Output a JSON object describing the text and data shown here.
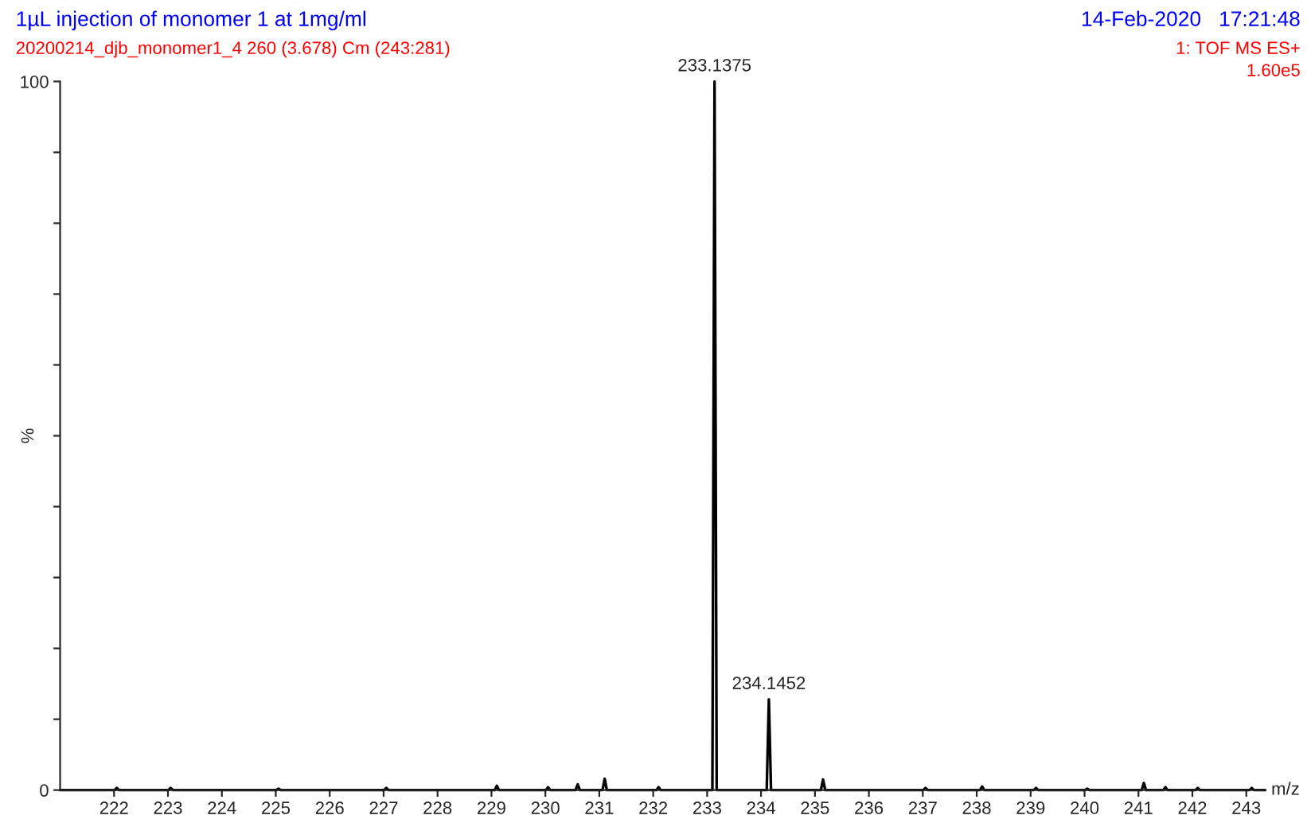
{
  "chart_data": {
    "type": "line",
    "title": "1µL injection of monomer 1 at 1mg/ml",
    "subtitle": "20200214_djb_monomer1_4 260 (3.678) Cm (243:281)",
    "xlabel": "m/z",
    "ylabel": "%",
    "annotations": [
      "14-Feb-2020   17:21:48",
      "1: TOF MS ES+",
      "1.60e5",
      {
        "text": "233.1375",
        "x": 233.1375,
        "y": 100
      },
      {
        "text": "234.1452",
        "x": 234.1452,
        "y": 12.8
      }
    ],
    "series": [
      {
        "color": "#000000",
        "x": [
          221.0,
          222.01,
          222.05,
          222.09,
          223.01,
          223.05,
          223.09,
          225.01,
          225.05,
          225.09,
          227.01,
          227.05,
          227.09,
          229.06,
          229.1,
          229.14,
          230.01,
          230.05,
          230.09,
          230.56,
          230.6,
          230.64,
          231.06,
          231.1,
          231.14,
          232.06,
          232.1,
          232.14,
          233.0975,
          233.1375,
          233.1775,
          234.1052,
          234.1452,
          234.1852,
          235.11,
          235.15,
          235.19,
          237.01,
          237.05,
          237.09,
          238.06,
          238.1,
          238.14,
          239.06,
          239.1,
          239.14,
          240.01,
          240.05,
          240.09,
          241.06,
          241.1,
          241.14,
          241.46,
          241.5,
          241.54,
          242.06,
          242.1,
          242.14,
          243.06,
          243.1,
          243.14,
          243.35
        ],
        "values": [
          0,
          0,
          0.3,
          0,
          0,
          0.3,
          0,
          0,
          0.2,
          0,
          0,
          0.3,
          0,
          0,
          0.6,
          0,
          0,
          0.4,
          0,
          0,
          0.8,
          0,
          0,
          1.6,
          0,
          0,
          0.4,
          0,
          0,
          100,
          0,
          0,
          12.8,
          0,
          0,
          1.5,
          0,
          0,
          0.3,
          0,
          0,
          0.5,
          0,
          0,
          0.3,
          0,
          0,
          0.2,
          0,
          0,
          1.0,
          0,
          0,
          0.4,
          0,
          0,
          0.3,
          0,
          0,
          0.3,
          0,
          0
        ]
      }
    ],
    "xlim": [
      221.0,
      243.35
    ],
    "ylim": [
      0,
      100
    ],
    "xticks": [
      222,
      223,
      224,
      225,
      226,
      227,
      228,
      229,
      230,
      231,
      232,
      233,
      234,
      235,
      236,
      237,
      238,
      239,
      240,
      241,
      242,
      243
    ],
    "yticks": [
      0,
      {
        "value": 10,
        "label": null
      },
      {
        "value": 20,
        "label": null
      },
      {
        "value": 30,
        "label": null
      },
      {
        "value": 40,
        "label": null
      },
      {
        "value": 50,
        "label": null
      },
      {
        "value": 60,
        "label": null
      },
      {
        "value": 70,
        "label": null
      },
      {
        "value": 80,
        "label": null
      },
      {
        "value": 90,
        "label": null
      },
      100
    ],
    "grid": false,
    "legend": false,
    "marker": "none",
    "line_style": "solid"
  }
}
